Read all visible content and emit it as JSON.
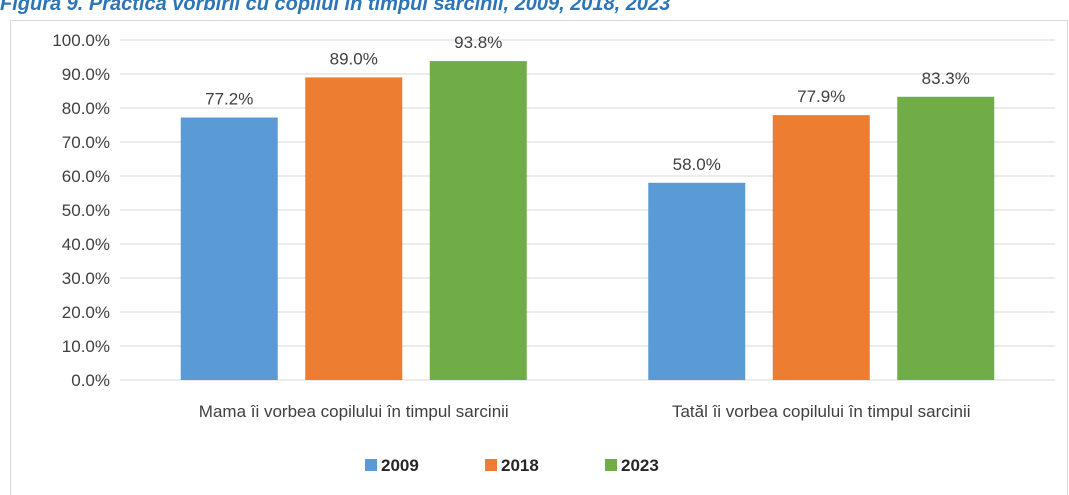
{
  "chart_data": {
    "type": "bar",
    "title": "Figura 9. Practica vorbirii cu copilul în timpul sarcinii, 2009, 2018, 2023",
    "categories": [
      "Mama îi vorbea copilului în timpul sarcinii",
      "Tatăl îi vorbea copilului în timpul sarcinii"
    ],
    "series": [
      {
        "name": "2009",
        "color": "#5b9bd5",
        "values": [
          77.2,
          58.0
        ],
        "value_labels": [
          "77.2%",
          "58.0%"
        ]
      },
      {
        "name": "2018",
        "color": "#ed7d31",
        "values": [
          89.0,
          77.9
        ],
        "value_labels": [
          "89.0%",
          "77.9%"
        ]
      },
      {
        "name": "2023",
        "color": "#70ad47",
        "values": [
          93.8,
          83.3
        ],
        "value_labels": [
          "93.8%",
          "83.3%"
        ]
      }
    ],
    "ylim": [
      0,
      100
    ],
    "yticks": [
      {
        "value": 0,
        "label": "0.0%"
      },
      {
        "value": 10,
        "label": "10.0%"
      },
      {
        "value": 20,
        "label": "20.0%"
      },
      {
        "value": 30,
        "label": "30.0%"
      },
      {
        "value": 40,
        "label": "40.0%"
      },
      {
        "value": 50,
        "label": "50.0%"
      },
      {
        "value": 60,
        "label": "60.0%"
      },
      {
        "value": 70,
        "label": "70.0%"
      },
      {
        "value": 80,
        "label": "80.0%"
      },
      {
        "value": 90,
        "label": "90.0%"
      },
      {
        "value": 100,
        "label": "100.0%"
      }
    ],
    "grid": true,
    "legend": "bottom"
  }
}
